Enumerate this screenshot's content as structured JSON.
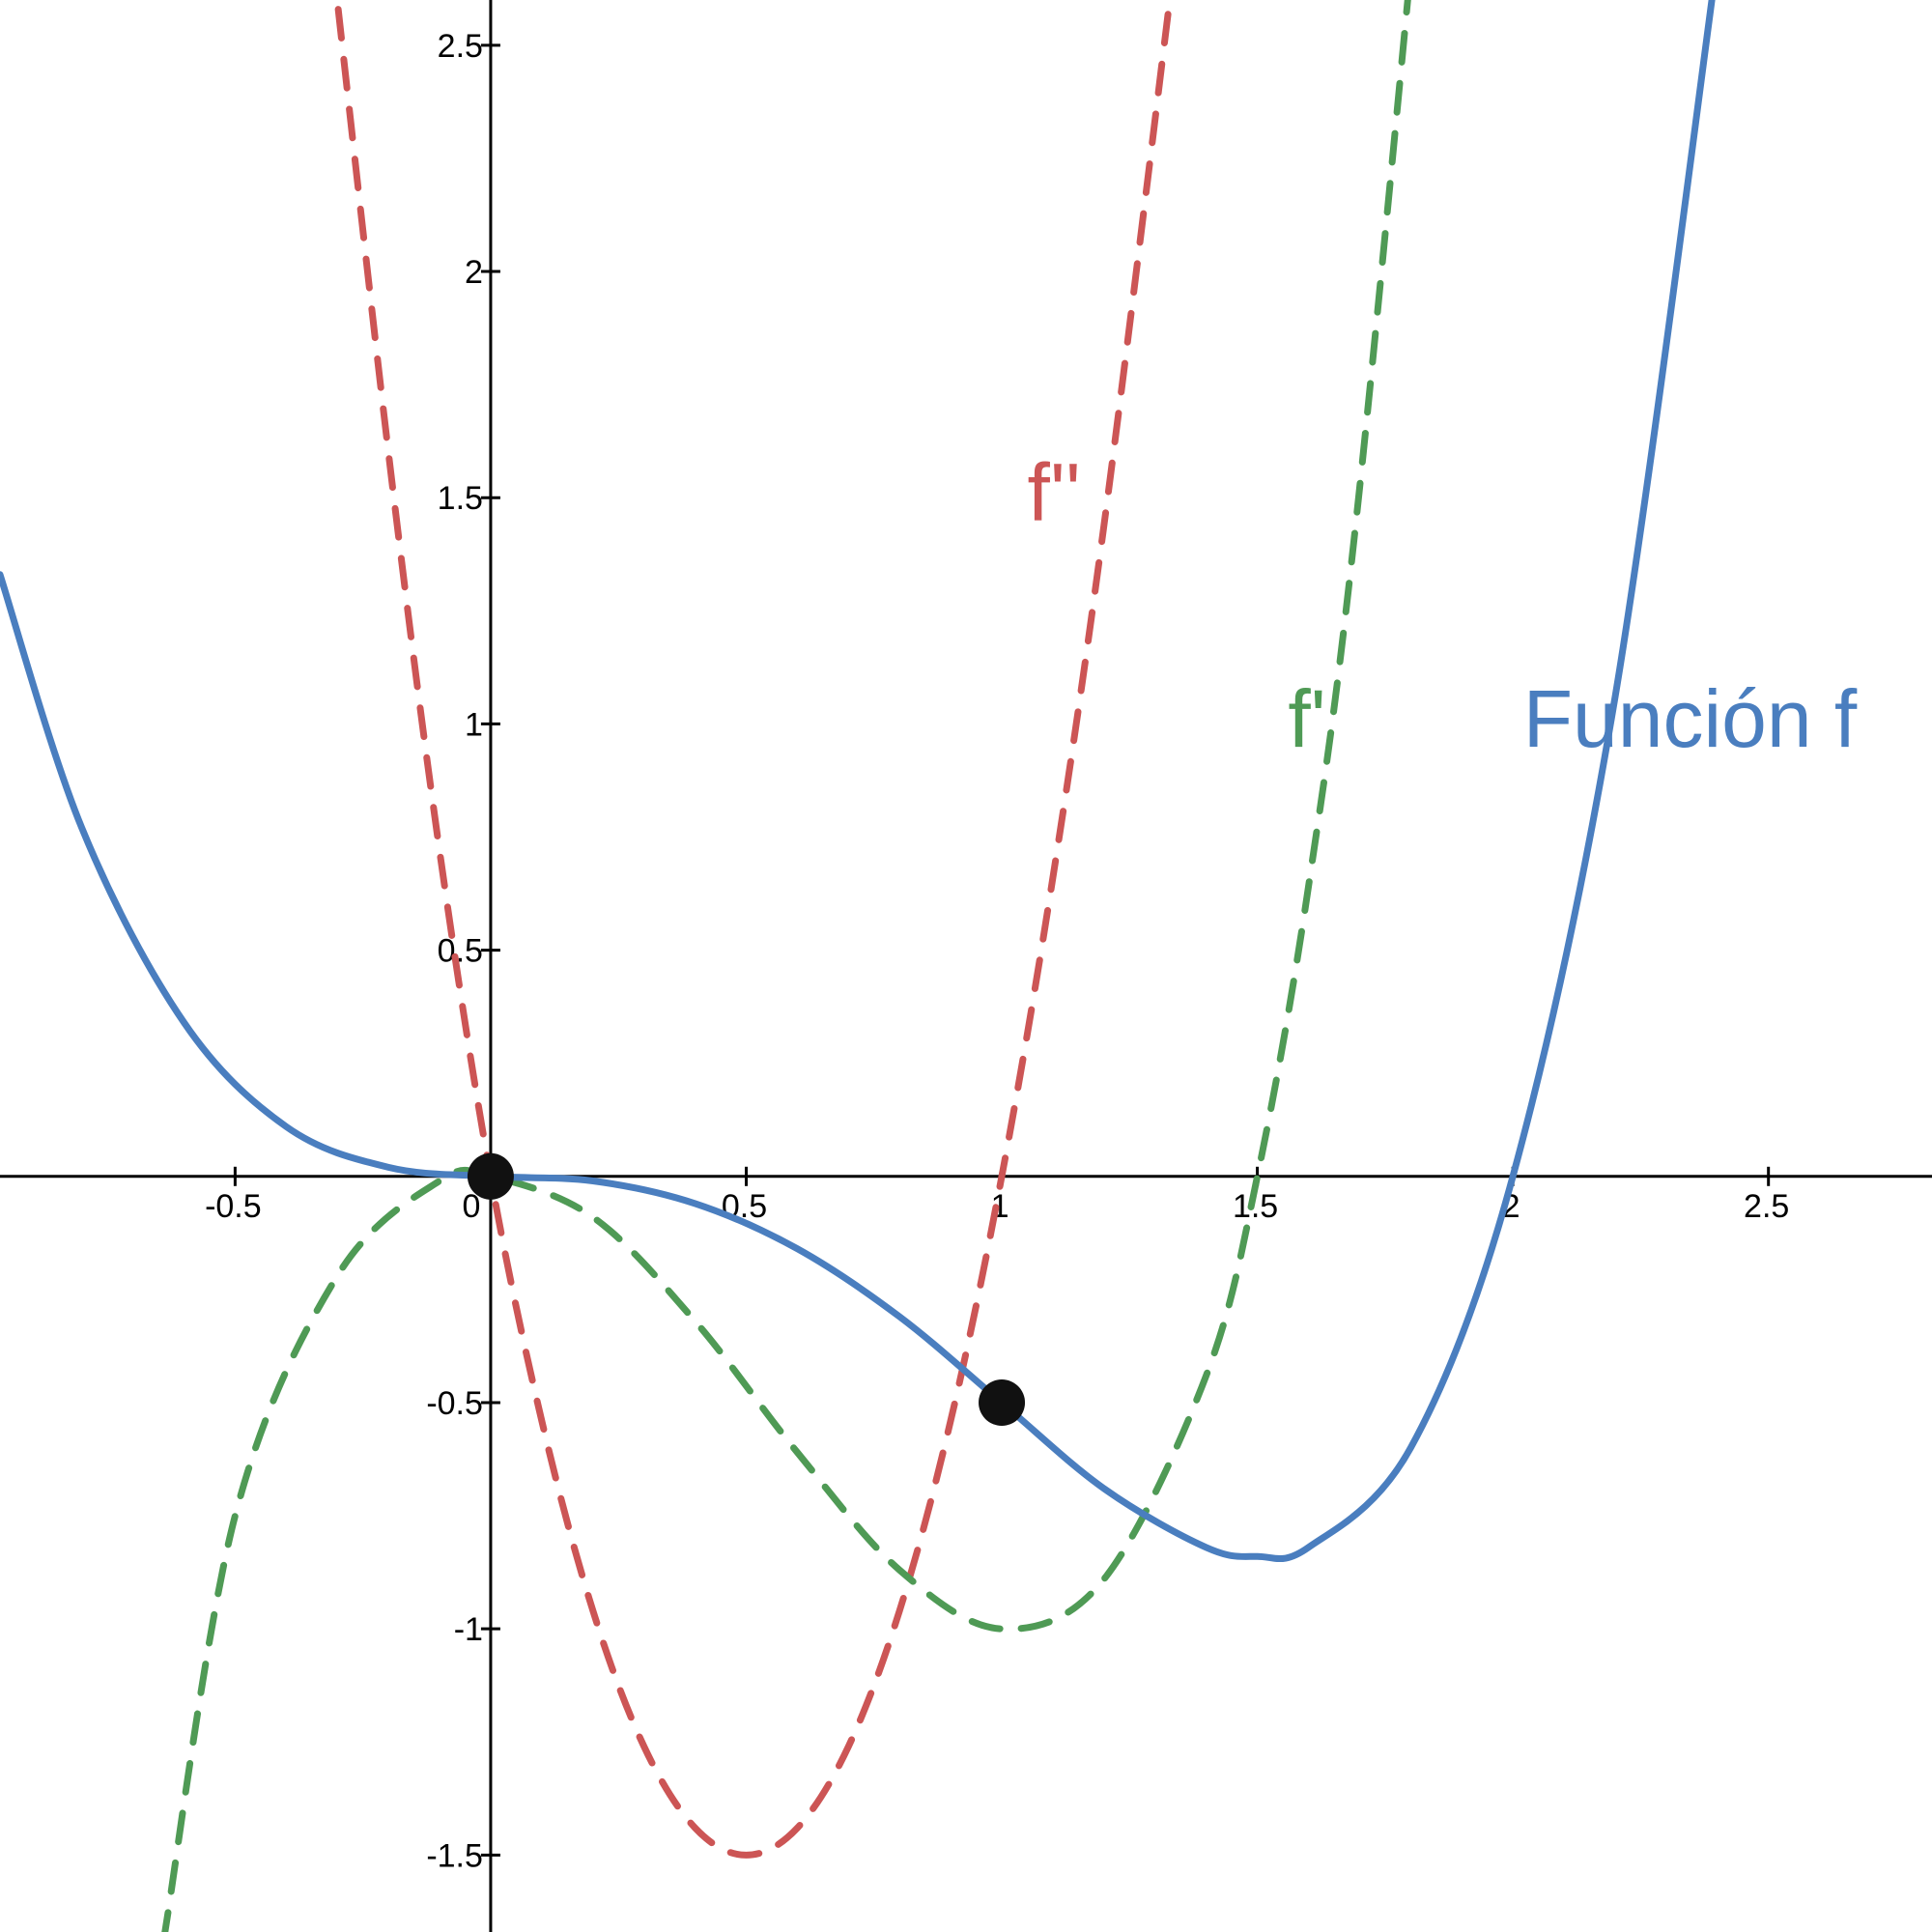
{
  "chart_data": {
    "type": "line",
    "title": "",
    "xlabel": "",
    "ylabel": "",
    "xlim": [
      -0.96,
      2.82
    ],
    "ylim": [
      -1.67,
      2.6
    ],
    "grid": false,
    "x_ticks": [
      {
        "value": -0.5,
        "label": "-0.5"
      },
      {
        "value": 0,
        "label": "0"
      },
      {
        "value": 0.5,
        "label": "0.5"
      },
      {
        "value": 1,
        "label": "1"
      },
      {
        "value": 1.5,
        "label": "1.5"
      },
      {
        "value": 2,
        "label": "2"
      },
      {
        "value": 2.5,
        "label": "2.5"
      }
    ],
    "y_ticks": [
      {
        "value": -1.5,
        "label": "-1.5"
      },
      {
        "value": -1,
        "label": "-1"
      },
      {
        "value": -0.5,
        "label": "-0.5"
      },
      {
        "value": 0.5,
        "label": "0.5"
      },
      {
        "value": 1,
        "label": "1"
      },
      {
        "value": 1.5,
        "label": "1.5"
      },
      {
        "value": 2,
        "label": "2"
      },
      {
        "value": 2.5,
        "label": "2.5"
      }
    ],
    "series": [
      {
        "name": "Función f",
        "style": "solid",
        "color": "#4a7ebf",
        "points": [
          [
            -0.96,
            1.33
          ],
          [
            -0.8,
            0.77
          ],
          [
            -0.6,
            0.34
          ],
          [
            -0.4,
            0.11
          ],
          [
            -0.2,
            0.02
          ],
          [
            0,
            0
          ],
          [
            0.2,
            -0.01
          ],
          [
            0.4,
            -0.06
          ],
          [
            0.6,
            -0.16
          ],
          [
            0.8,
            -0.31
          ],
          [
            1,
            -0.5
          ],
          [
            1.2,
            -0.69
          ],
          [
            1.4,
            -0.82
          ],
          [
            1.5,
            -0.84
          ],
          [
            1.6,
            -0.82
          ],
          [
            1.8,
            -0.6
          ],
          [
            2,
            0
          ],
          [
            2.2,
            1.06
          ],
          [
            2.4,
            2.69
          ]
        ]
      },
      {
        "name": "f'",
        "style": "dashed",
        "color": "#4f9a55",
        "points": [
          [
            -0.64,
            -1.69
          ],
          [
            -0.5,
            -0.75
          ],
          [
            -0.3,
            -0.22
          ],
          [
            -0.1,
            -0.01
          ],
          [
            0,
            0
          ],
          [
            0.2,
            -0.09
          ],
          [
            0.4,
            -0.32
          ],
          [
            0.6,
            -0.61
          ],
          [
            0.8,
            -0.87
          ],
          [
            1,
            -1
          ],
          [
            1.2,
            -0.89
          ],
          [
            1.4,
            -0.44
          ],
          [
            1.5,
            0
          ],
          [
            1.6,
            0.64
          ],
          [
            1.7,
            1.52
          ],
          [
            1.87,
            3.5
          ]
        ]
      },
      {
        "name": "f''",
        "style": "dashed",
        "color": "#cc5555",
        "points": [
          [
            -0.32,
            2.8
          ],
          [
            -0.2,
            1.6
          ],
          [
            -0.1,
            0.72
          ],
          [
            0,
            0
          ],
          [
            0.1,
            -0.54
          ],
          [
            0.2,
            -0.96
          ],
          [
            0.3,
            -1.26
          ],
          [
            0.4,
            -1.44
          ],
          [
            0.5,
            -1.5
          ],
          [
            0.6,
            -1.44
          ],
          [
            0.7,
            -1.26
          ],
          [
            0.8,
            -0.96
          ],
          [
            0.9,
            -0.54
          ],
          [
            1,
            0
          ],
          [
            1.1,
            0.66
          ],
          [
            1.2,
            1.44
          ],
          [
            1.32,
            2.52
          ],
          [
            1.34,
            2.72
          ]
        ]
      }
    ],
    "points": [
      {
        "x": 0,
        "y": 0
      },
      {
        "x": 1,
        "y": -0.5
      }
    ],
    "annotations": [
      {
        "text": "f''",
        "x": 1.05,
        "y": 1.45,
        "color": "#cc5555"
      },
      {
        "text": "f'",
        "x": 1.56,
        "y": 0.95,
        "color": "#4f9a55"
      },
      {
        "text": "Función f",
        "x": 2.02,
        "y": 0.95,
        "color": "#4a7ebf"
      }
    ]
  }
}
